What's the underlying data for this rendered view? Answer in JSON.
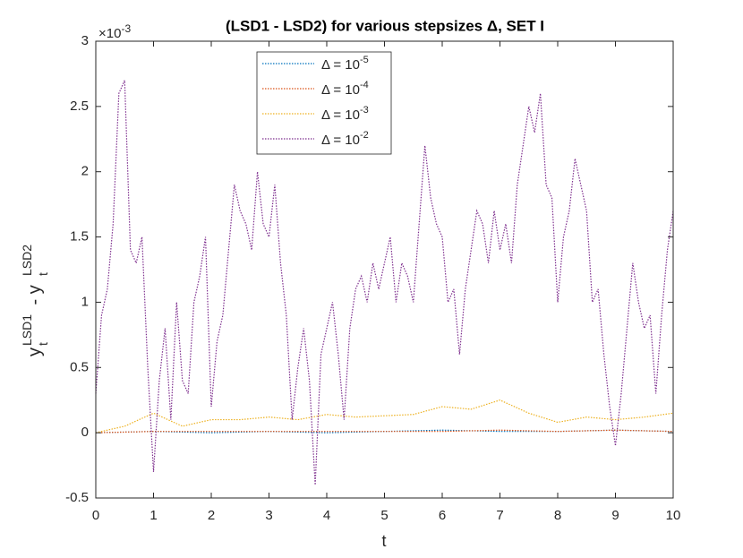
{
  "chart_data": {
    "type": "line",
    "title": "(LSD1 - LSD2) for various stepsizes Δ, SET I",
    "xlabel": "t",
    "ylabel": {
      "base1": "y",
      "sub1": "t",
      "sup1": "LSD1",
      "base2": " - y",
      "sub2": "t",
      "sup2": "LSD2"
    },
    "y_exponent": {
      "base": "×10",
      "sup": "-3"
    },
    "xlim": [
      0,
      10
    ],
    "xticks": [
      0,
      1,
      2,
      3,
      4,
      5,
      6,
      7,
      8,
      9,
      10
    ],
    "ylim": [
      -0.5,
      3
    ],
    "yticks": [
      -0.5,
      0,
      0.5,
      1,
      1.5,
      2,
      2.5,
      3
    ],
    "legend": "top-center",
    "series": [
      {
        "name": "Δ = 10",
        "name_sup": "-5",
        "color": "#0072bd",
        "x": [
          0,
          1,
          2,
          3,
          4,
          5,
          6,
          7,
          8,
          9,
          10
        ],
        "values": [
          0,
          0.01,
          0,
          0.01,
          0,
          0.01,
          0.02,
          0.01,
          0.01,
          0.02,
          0.01
        ]
      },
      {
        "name": "Δ = 10",
        "name_sup": "-4",
        "color": "#d95319",
        "x": [
          0,
          1,
          2,
          3,
          4,
          5,
          6,
          7,
          8,
          9,
          10
        ],
        "values": [
          0,
          0.01,
          0.01,
          0.01,
          0.01,
          0.01,
          0.01,
          0.02,
          0.01,
          0.02,
          0.01
        ]
      },
      {
        "name": "Δ = 10",
        "name_sup": "-3",
        "color": "#edb120",
        "x": [
          0,
          0.5,
          1,
          1.5,
          2,
          2.5,
          3,
          3.5,
          4,
          4.5,
          5,
          5.5,
          6,
          6.5,
          7,
          7.5,
          8,
          8.5,
          9,
          9.5,
          10
        ],
        "values": [
          0,
          0.05,
          0.15,
          0.05,
          0.1,
          0.1,
          0.12,
          0.1,
          0.14,
          0.12,
          0.13,
          0.14,
          0.2,
          0.18,
          0.25,
          0.15,
          0.08,
          0.12,
          0.1,
          0.12,
          0.15
        ]
      },
      {
        "name": "Δ = 10",
        "name_sup": "-2",
        "color": "#7e2f8e",
        "x": [
          0,
          0.1,
          0.2,
          0.3,
          0.4,
          0.5,
          0.6,
          0.7,
          0.8,
          0.9,
          1,
          1.1,
          1.2,
          1.3,
          1.4,
          1.5,
          1.6,
          1.7,
          1.8,
          1.9,
          2,
          2.1,
          2.2,
          2.3,
          2.4,
          2.5,
          2.6,
          2.7,
          2.8,
          2.9,
          3,
          3.1,
          3.2,
          3.3,
          3.4,
          3.5,
          3.6,
          3.7,
          3.8,
          3.9,
          4,
          4.1,
          4.2,
          4.3,
          4.4,
          4.5,
          4.6,
          4.7,
          4.8,
          4.9,
          5,
          5.1,
          5.2,
          5.3,
          5.4,
          5.5,
          5.6,
          5.7,
          5.8,
          5.9,
          6,
          6.1,
          6.2,
          6.3,
          6.4,
          6.5,
          6.6,
          6.7,
          6.8,
          6.9,
          7,
          7.1,
          7.2,
          7.3,
          7.4,
          7.5,
          7.6,
          7.7,
          7.8,
          7.9,
          8,
          8.1,
          8.2,
          8.3,
          8.4,
          8.5,
          8.6,
          8.7,
          8.8,
          8.9,
          9,
          9.1,
          9.2,
          9.3,
          9.4,
          9.5,
          9.6,
          9.7,
          9.8,
          9.9,
          10
        ],
        "values": [
          0.3,
          0.9,
          1.1,
          1.6,
          2.6,
          2.7,
          1.4,
          1.3,
          1.5,
          0.5,
          -0.3,
          0.4,
          0.8,
          0.1,
          1.0,
          0.4,
          0.3,
          1.0,
          1.2,
          1.5,
          0.2,
          0.7,
          0.9,
          1.4,
          1.9,
          1.7,
          1.6,
          1.4,
          2.0,
          1.6,
          1.5,
          1.9,
          1.3,
          0.9,
          0.1,
          0.5,
          0.8,
          0.4,
          -0.4,
          0.6,
          0.8,
          1.0,
          0.6,
          0.1,
          0.8,
          1.1,
          1.2,
          1.0,
          1.3,
          1.1,
          1.3,
          1.5,
          1.0,
          1.3,
          1.2,
          1.0,
          1.6,
          2.2,
          1.8,
          1.6,
          1.5,
          1.0,
          1.1,
          0.6,
          1.1,
          1.4,
          1.7,
          1.6,
          1.3,
          1.7,
          1.4,
          1.6,
          1.3,
          1.9,
          2.2,
          2.5,
          2.3,
          2.6,
          1.9,
          1.8,
          1.0,
          1.5,
          1.7,
          2.1,
          1.9,
          1.7,
          1.0,
          1.1,
          0.6,
          0.2,
          -0.1,
          0.3,
          0.8,
          1.3,
          1.0,
          0.8,
          0.9,
          0.3,
          0.9,
          1.4,
          1.7
        ]
      }
    ]
  }
}
